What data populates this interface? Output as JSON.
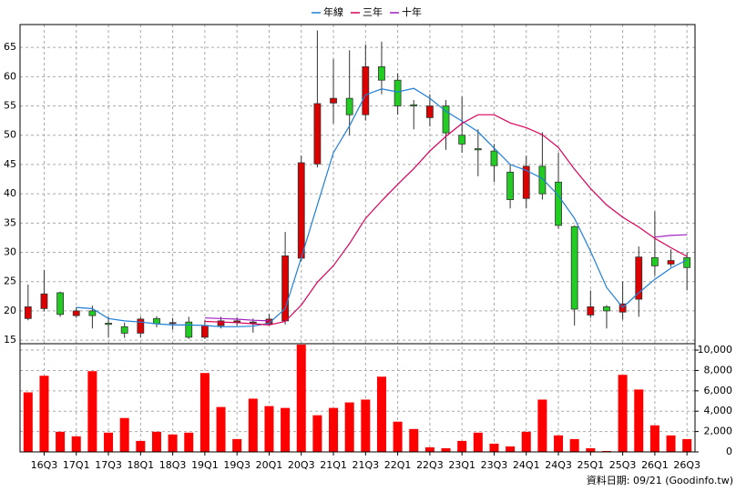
{
  "chart_data": {
    "type": "candlestick",
    "categories": [
      null,
      "16Q3",
      null,
      "17Q1",
      null,
      "17Q3",
      null,
      "18Q1",
      null,
      "18Q3",
      null,
      "19Q1",
      null,
      "19Q3",
      null,
      "20Q1",
      null,
      "20Q3",
      null,
      "21Q1",
      null,
      "21Q3",
      null,
      "22Q1",
      null,
      "22Q3",
      null,
      "23Q1",
      null,
      "23Q3",
      null,
      "24Q1",
      null,
      "24Q3",
      null,
      "25Q1",
      null,
      "25Q3",
      null,
      "26Q1",
      null,
      "26Q3"
    ],
    "open": [
      18.7,
      20.4,
      23.1,
      19.2,
      20.0,
      17.9,
      17.3,
      16.2,
      18.7,
      17.9,
      18.1,
      15.5,
      17.5,
      18.1,
      18.0,
      17.8,
      18.3,
      29.0,
      45.1,
      55.5,
      56.3,
      53.5,
      61.7,
      59.4,
      55.2,
      53.0,
      55.0,
      50.0,
      47.7,
      47.3,
      43.7,
      39.2,
      44.7,
      42.0,
      34.4,
      19.3,
      20.7,
      19.8,
      22.0,
      29.1,
      28.0,
      29.1
    ],
    "high": [
      24.5,
      27.0,
      23.3,
      20.6,
      20.9,
      19.0,
      18.0,
      19.0,
      19.1,
      18.8,
      19.0,
      18.4,
      19.0,
      18.9,
      18.7,
      19.5,
      33.5,
      46.5,
      67.9,
      63.0,
      64.5,
      65.5,
      66.0,
      60.6,
      56.0,
      57.0,
      56.0,
      56.6,
      51.0,
      48.5,
      45.0,
      46.5,
      50.5,
      47.0,
      34.6,
      23.5,
      21.0,
      25.0,
      31.0,
      37.0,
      30.5,
      30.0
    ],
    "low": [
      18.4,
      19.9,
      19.0,
      18.8,
      17.0,
      15.5,
      15.4,
      15.5,
      17.2,
      16.8,
      15.2,
      15.2,
      17.0,
      17.5,
      16.3,
      17.5,
      17.7,
      28.5,
      44.5,
      52.0,
      50.0,
      52.5,
      57.0,
      53.5,
      51.0,
      51.5,
      47.5,
      47.0,
      43.0,
      42.0,
      37.5,
      37.5,
      39.0,
      34.0,
      17.5,
      18.8,
      17.0,
      18.5,
      19.0,
      26.0,
      27.5,
      23.5
    ],
    "close": [
      20.7,
      22.9,
      19.4,
      20.0,
      19.2,
      17.7,
      16.2,
      18.6,
      17.8,
      18.0,
      15.5,
      17.5,
      18.3,
      18.3,
      18.1,
      18.6,
      29.4,
      45.3,
      55.4,
      56.3,
      53.5,
      61.7,
      59.4,
      55.0,
      55.0,
      55.0,
      50.4,
      48.5,
      47.5,
      44.8,
      39.0,
      44.7,
      40.0,
      34.6,
      20.3,
      20.7,
      20.0,
      21.2,
      29.2,
      27.7,
      28.6,
      27.4
    ],
    "up_color": "#dd0000",
    "down_color": "#22cc22",
    "series": [
      {
        "name": "年線",
        "color": "#1f7fd8",
        "values": [
          null,
          null,
          null,
          20.6,
          20.4,
          18.7,
          18.3,
          18.1,
          17.8,
          17.6,
          17.6,
          17.5,
          17.3,
          17.3,
          17.4,
          17.9,
          20.4,
          29.1,
          38.1,
          47.0,
          51.6,
          56.9,
          57.9,
          57.4,
          58.0,
          56.3,
          54.1,
          52.4,
          50.6,
          47.8,
          45.0,
          44.0,
          42.6,
          39.7,
          35.8,
          30.2,
          24.0,
          20.6,
          23.1,
          25.4,
          27.3,
          28.7
        ]
      },
      {
        "name": "三年",
        "color": "#d8005a",
        "values": [
          null,
          null,
          null,
          null,
          null,
          null,
          null,
          null,
          null,
          null,
          null,
          18.2,
          18.1,
          18.0,
          17.8,
          17.6,
          18.2,
          21.0,
          24.9,
          27.7,
          31.5,
          35.8,
          38.8,
          41.6,
          44.3,
          47.3,
          49.8,
          52.0,
          53.5,
          53.5,
          52.1,
          51.3,
          50.1,
          47.9,
          44.2,
          40.9,
          38.1,
          36.0,
          34.3,
          32.4,
          30.8,
          29.3
        ]
      },
      {
        "name": "十年",
        "color": "#a020c0",
        "values": [
          null,
          null,
          null,
          null,
          null,
          null,
          null,
          null,
          null,
          null,
          null,
          18.8,
          18.7,
          18.6,
          18.4,
          18.3,
          null,
          null,
          null,
          null,
          null,
          null,
          null,
          null,
          null,
          null,
          null,
          null,
          null,
          null,
          null,
          null,
          null,
          null,
          null,
          null,
          null,
          null,
          null,
          32.6,
          32.9,
          33.0
        ]
      }
    ],
    "ylim": [
      14.4,
      68.9
    ],
    "yticks": [
      15,
      20,
      25,
      30,
      35,
      40,
      45,
      50,
      55,
      60,
      65
    ],
    "volume": {
      "color": "#ff0000",
      "values": [
        5850,
        7480,
        1980,
        1530,
        7930,
        1890,
        3330,
        1080,
        1980,
        1710,
        1890,
        7750,
        4410,
        1260,
        5230,
        4500,
        4320,
        10540,
        3600,
        4320,
        4860,
        5140,
        7390,
        2970,
        2250,
        450,
        360,
        1080,
        1890,
        810,
        540,
        1980,
        5140,
        1620,
        1260,
        360,
        90,
        7570,
        6130,
        2610,
        1620,
        1260
      ],
      "ylim": [
        0,
        10630
      ],
      "yticks": [
        0,
        {
          "value": 2000,
          "label": "2,000"
        },
        {
          "value": 4000,
          "label": "4,000"
        },
        {
          "value": 6000,
          "label": "6,000"
        },
        {
          "value": 8000,
          "label": "8,000"
        },
        {
          "value": 10000,
          "label": "10,000"
        }
      ]
    },
    "grid": true,
    "legend": "top",
    "source": "資料日期: 09/21 (Goodinfo.tw)"
  }
}
